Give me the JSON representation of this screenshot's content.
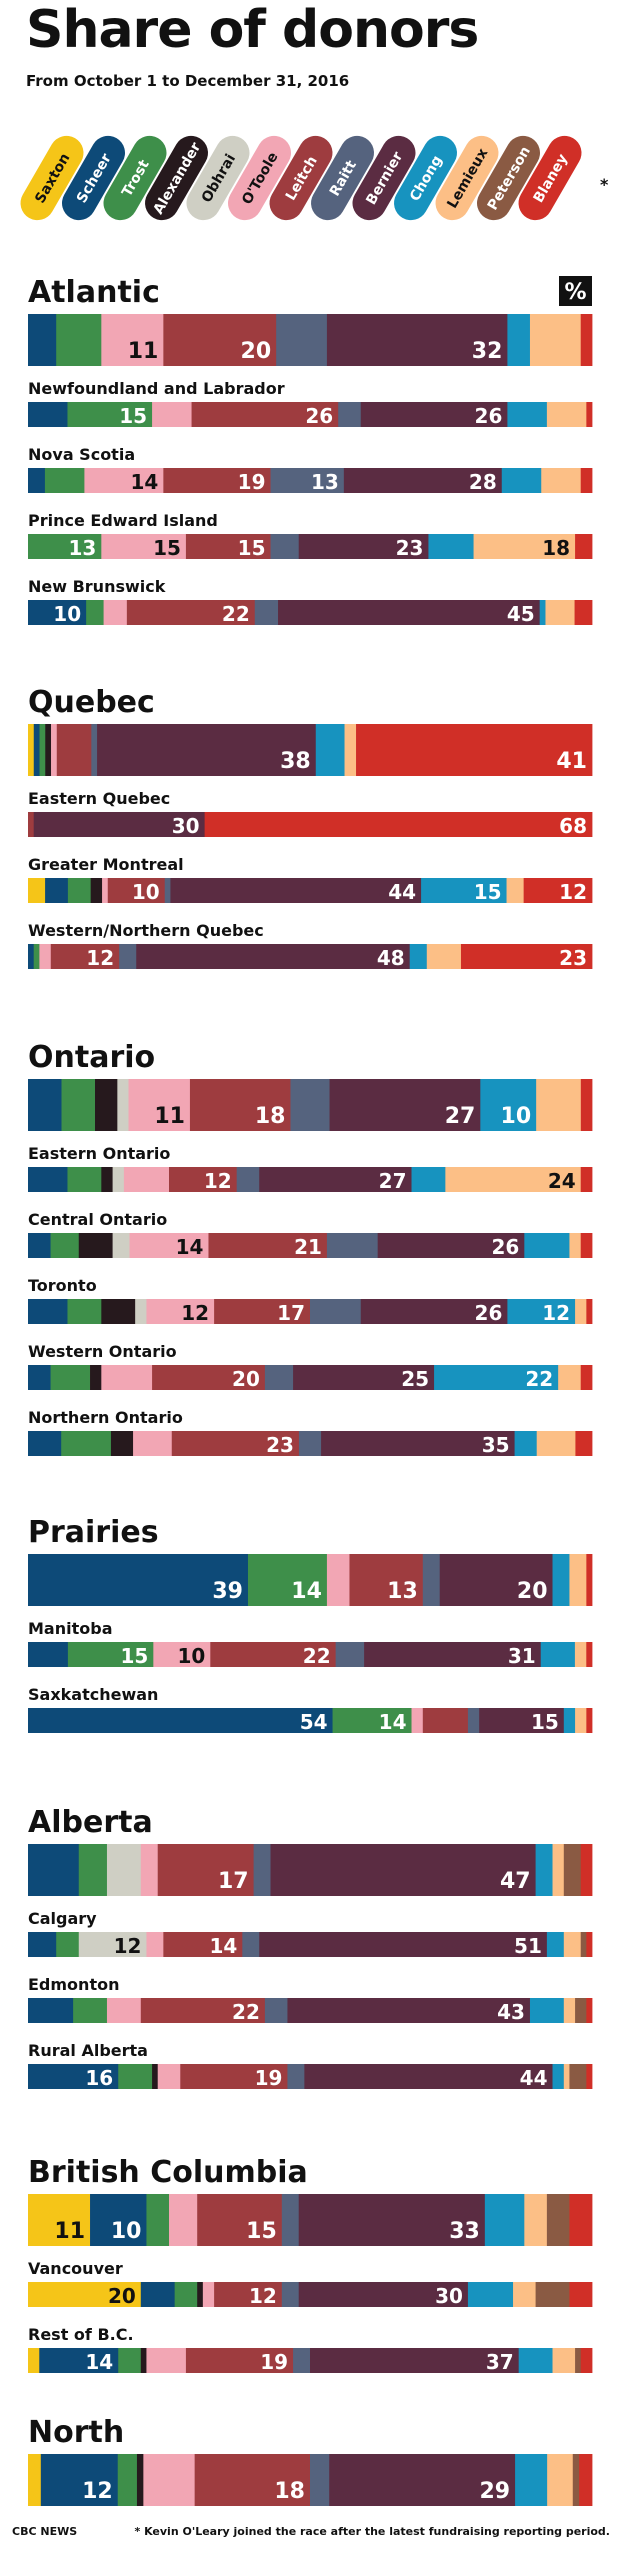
{
  "title": "Share of donors",
  "subtitle": "From October 1 to December 31, 2016",
  "percent_badge": "%",
  "footer": {
    "source": "CBC NEWS",
    "note": "* Kevin O'Leary joined the race after the latest fundraising reporting period."
  },
  "legend_marker": "*",
  "candidates": [
    {
      "name": "Saxton",
      "color": "#f5c518",
      "text_color": "#111111"
    },
    {
      "name": "Scheer",
      "color": "#0d4a78",
      "text_color": "#ffffff"
    },
    {
      "name": "Trost",
      "color": "#3e8f4a",
      "text_color": "#ffffff"
    },
    {
      "name": "Alexander",
      "color": "#26191d",
      "text_color": "#ffffff"
    },
    {
      "name": "Obhrai",
      "color": "#cfcfc4",
      "text_color": "#111111"
    },
    {
      "name": "O'Toole",
      "color": "#f2a6b4",
      "text_color": "#111111"
    },
    {
      "name": "Leitch",
      "color": "#9e3c3f",
      "text_color": "#ffffff"
    },
    {
      "name": "Raitt",
      "color": "#55637e",
      "text_color": "#ffffff"
    },
    {
      "name": "Bernier",
      "color": "#5b2c42",
      "text_color": "#ffffff"
    },
    {
      "name": "Chong",
      "color": "#1793bf",
      "text_color": "#ffffff"
    },
    {
      "name": "Lemieux",
      "color": "#fcbf86",
      "text_color": "#111111"
    },
    {
      "name": "Peterson",
      "color": "#8a5a43",
      "text_color": "#ffffff"
    },
    {
      "name": "Blaney",
      "color": "#d02f27",
      "text_color": "#ffffff"
    }
  ],
  "chart_data": {
    "type": "bar",
    "orientation": "horizontal-stacked",
    "unit": "%",
    "series_names": [
      "Saxton",
      "Scheer",
      "Trost",
      "Alexander",
      "Obhrai",
      "O'Toole",
      "Leitch",
      "Raitt",
      "Bernier",
      "Chong",
      "Lemieux",
      "Peterson",
      "Blaney"
    ],
    "groups": [
      {
        "name": "Atlantic",
        "regions": [
          {
            "name": "",
            "major": true,
            "values": [
              0,
              5,
              8,
              0,
              0,
              11,
              20,
              9,
              32,
              4,
              9,
              0,
              2
            ],
            "labels": {
              "O'Toole": "11",
              "Leitch": "20",
              "Bernier": "32"
            }
          },
          {
            "name": "Newfoundland and Labrador",
            "values": [
              0,
              7,
              15,
              0,
              0,
              7,
              26,
              4,
              26,
              7,
              7,
              0,
              1
            ],
            "labels": {
              "Trost": "15",
              "Leitch": "26",
              "Bernier": "26"
            }
          },
          {
            "name": "Nova Scotia",
            "values": [
              0,
              3,
              7,
              0,
              0,
              14,
              19,
              13,
              28,
              7,
              7,
              0,
              2
            ],
            "labels": {
              "O'Toole": "14",
              "Leitch": "19",
              "Raitt": "13",
              "Bernier": "28"
            }
          },
          {
            "name": "Prince Edward Island",
            "values": [
              0,
              0,
              13,
              0,
              0,
              15,
              15,
              5,
              23,
              8,
              18,
              0,
              3
            ],
            "labels": {
              "Trost": "13",
              "O'Toole": "15",
              "Leitch": "15",
              "Bernier": "23",
              "Lemieux": "18"
            }
          },
          {
            "name": "New Brunswick",
            "values": [
              0,
              10,
              3,
              0,
              0,
              4,
              22,
              4,
              45,
              1,
              5,
              0,
              3
            ],
            "labels": {
              "Scheer": "10",
              "Leitch": "22",
              "Bernier": "45"
            }
          }
        ]
      },
      {
        "name": "Quebec",
        "regions": [
          {
            "name": "",
            "major": true,
            "values": [
              1,
              1,
              1,
              1,
              0,
              1,
              6,
              1,
              38,
              5,
              2,
              0,
              41
            ],
            "labels": {
              "Bernier": "38",
              "Blaney": "41"
            }
          },
          {
            "name": "Eastern Quebec",
            "values": [
              0,
              0,
              0,
              0,
              0,
              0,
              1,
              0,
              30,
              0,
              0,
              0,
              68
            ],
            "labels": {
              "Bernier": "30",
              "Blaney": "68"
            }
          },
          {
            "name": "Greater Montreal",
            "values": [
              3,
              4,
              4,
              2,
              0,
              1,
              10,
              1,
              44,
              15,
              3,
              0,
              12
            ],
            "labels": {
              "Leitch": "10",
              "Bernier": "44",
              "Chong": "15",
              "Blaney": "12"
            }
          },
          {
            "name": "Western/Northern Quebec",
            "values": [
              0,
              1,
              1,
              0,
              0,
              2,
              12,
              3,
              48,
              3,
              6,
              0,
              23
            ],
            "labels": {
              "Leitch": "12",
              "Bernier": "48",
              "Blaney": "23"
            }
          }
        ]
      },
      {
        "name": "Ontario",
        "regions": [
          {
            "name": "",
            "major": true,
            "values": [
              0,
              6,
              6,
              4,
              2,
              11,
              18,
              7,
              27,
              10,
              8,
              0,
              2
            ],
            "labels": {
              "O'Toole": "11",
              "Leitch": "18",
              "Bernier": "27",
              "Chong": "10"
            }
          },
          {
            "name": "Eastern Ontario",
            "values": [
              0,
              7,
              6,
              2,
              2,
              8,
              12,
              4,
              27,
              6,
              24,
              0,
              2
            ],
            "labels": {
              "Leitch": "12",
              "Bernier": "27",
              "Lemieux": "24"
            }
          },
          {
            "name": "Central Ontario",
            "values": [
              0,
              4,
              5,
              6,
              3,
              14,
              21,
              9,
              26,
              8,
              2,
              0,
              2
            ],
            "labels": {
              "O'Toole": "14",
              "Leitch": "21",
              "Bernier": "26"
            }
          },
          {
            "name": "Toronto",
            "values": [
              0,
              7,
              6,
              6,
              2,
              12,
              17,
              9,
              26,
              12,
              2,
              0,
              1
            ],
            "labels": {
              "O'Toole": "12",
              "Leitch": "17",
              "Bernier": "26",
              "Chong": "12"
            }
          },
          {
            "name": "Western Ontario",
            "values": [
              0,
              4,
              7,
              2,
              0,
              9,
              20,
              5,
              25,
              22,
              4,
              0,
              2
            ],
            "labels": {
              "Leitch": "20",
              "Bernier": "25",
              "Chong": "22"
            }
          },
          {
            "name": "Northern Ontario",
            "values": [
              0,
              6,
              9,
              4,
              0,
              7,
              23,
              4,
              35,
              4,
              7,
              0,
              3
            ],
            "labels": {
              "Leitch": "23",
              "Bernier": "35"
            }
          }
        ]
      },
      {
        "name": "Prairies",
        "regions": [
          {
            "name": "",
            "major": true,
            "values": [
              0,
              39,
              14,
              0,
              0,
              4,
              13,
              3,
              20,
              3,
              3,
              0,
              1
            ],
            "labels": {
              "Scheer": "39",
              "Trost": "14",
              "Leitch": "13",
              "Bernier": "20"
            }
          },
          {
            "name": "Manitoba",
            "values": [
              0,
              7,
              15,
              0,
              0,
              10,
              22,
              5,
              31,
              6,
              2,
              0,
              1
            ],
            "labels": {
              "Trost": "15",
              "O'Toole": "10",
              "Leitch": "22",
              "Bernier": "31"
            }
          },
          {
            "name": "Saxkatchewan",
            "values": [
              0,
              54,
              14,
              0,
              0,
              2,
              8,
              2,
              15,
              2,
              2,
              0,
              1
            ],
            "labels": {
              "Scheer": "54",
              "Trost": "14",
              "Bernier": "15"
            }
          }
        ]
      },
      {
        "name": "Alberta",
        "regions": [
          {
            "name": "",
            "major": true,
            "values": [
              0,
              9,
              5,
              0,
              6,
              3,
              17,
              3,
              47,
              3,
              2,
              3,
              2
            ],
            "labels": {
              "Leitch": "17",
              "Bernier": "47"
            }
          },
          {
            "name": "Calgary",
            "values": [
              0,
              5,
              4,
              0,
              12,
              3,
              14,
              3,
              51,
              3,
              3,
              1,
              1
            ],
            "labels": {
              "Obhrai": "12",
              "Leitch": "14",
              "Bernier": "51"
            }
          },
          {
            "name": "Edmonton",
            "values": [
              0,
              8,
              6,
              0,
              0,
              6,
              22,
              4,
              43,
              6,
              2,
              2,
              1
            ],
            "labels": {
              "Leitch": "22",
              "Bernier": "43"
            }
          },
          {
            "name": "Rural Alberta",
            "values": [
              0,
              16,
              6,
              1,
              0,
              4,
              19,
              3,
              44,
              2,
              1,
              3,
              1
            ],
            "labels": {
              "Scheer": "16",
              "Leitch": "19",
              "Bernier": "44"
            }
          }
        ]
      },
      {
        "name": "British Columbia",
        "regions": [
          {
            "name": "",
            "major": true,
            "values": [
              11,
              10,
              4,
              0,
              0,
              5,
              15,
              3,
              33,
              7,
              4,
              4,
              4
            ],
            "labels": {
              "Saxton": "11",
              "Scheer": "10",
              "Leitch": "15",
              "Bernier": "33"
            }
          },
          {
            "name": "Vancouver",
            "values": [
              20,
              6,
              4,
              1,
              0,
              2,
              12,
              3,
              30,
              8,
              4,
              6,
              4
            ],
            "labels": {
              "Saxton": "20",
              "Leitch": "12",
              "Bernier": "30"
            }
          },
          {
            "name": "Rest of B.C.",
            "values": [
              2,
              14,
              4,
              1,
              0,
              7,
              19,
              3,
              37,
              6,
              4,
              1,
              2
            ],
            "labels": {
              "Scheer": "14",
              "Leitch": "19",
              "Bernier": "37"
            }
          }
        ]
      },
      {
        "name": "North",
        "regions": [
          {
            "name": "",
            "major": true,
            "values": [
              2,
              12,
              3,
              1,
              0,
              8,
              18,
              3,
              29,
              5,
              4,
              1,
              2
            ],
            "labels": {
              "Scheer": "12",
              "Leitch": "18",
              "Bernier": "29"
            }
          }
        ]
      }
    ]
  }
}
